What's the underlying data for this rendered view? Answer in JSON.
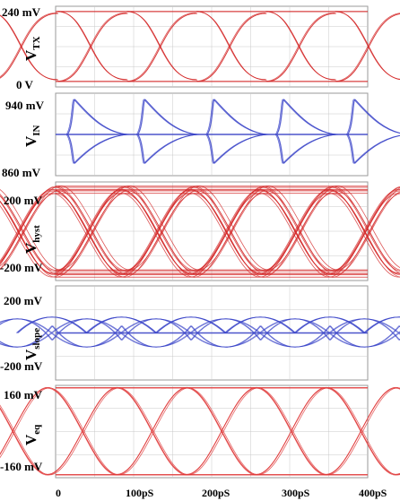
{
  "chart_data": [
    {
      "type": "line",
      "id": "vtx",
      "ylabel": {
        "main": "V",
        "sub": "TX"
      },
      "ticks": [
        {
          "label": "240 mV",
          "value": 240
        },
        {
          "label": "0 V",
          "value": 0
        }
      ],
      "ylim": [
        0,
        240
      ],
      "x_unit": "pS",
      "crossings_ps": [
        48,
        140,
        230,
        318,
        404
      ],
      "color": "#d42b2b",
      "shape": "nrz-rc",
      "eye_closure": 0.02
    },
    {
      "type": "line",
      "id": "vin",
      "ylabel": {
        "main": "V",
        "sub": "IN"
      },
      "ticks": [
        {
          "label": "940 mV",
          "value": 940
        },
        {
          "label": "860 mV",
          "value": 860
        }
      ],
      "ylim": [
        860,
        940
      ],
      "x_unit": "pS",
      "crossings_ps": [
        24,
        114,
        203,
        292,
        383
      ],
      "color": "#3a44c8",
      "shape": "spike",
      "spike_peak": 934,
      "spike_trough": 872,
      "baseline": 900
    },
    {
      "type": "line",
      "id": "vhyst",
      "ylabel": {
        "main": "V",
        "sub": "hyst"
      },
      "ticks": [
        {
          "label": "200 mV",
          "value": 200
        },
        {
          "label": "-200 mV",
          "value": -200
        }
      ],
      "ylim": [
        -200,
        200
      ],
      "x_unit": "pS",
      "crossings_ps": [
        45,
        133,
        222,
        312,
        400
      ],
      "color": "#d42b2b",
      "shape": "eye-jitter",
      "high": 170,
      "low": -170,
      "spread": 0.08
    },
    {
      "type": "line",
      "id": "vslope",
      "ylabel": {
        "main": "V",
        "sub": "slope"
      },
      "ticks": [
        {
          "label": "200 mV",
          "value": 200
        },
        {
          "label": "-200 mV",
          "value": -200
        }
      ],
      "ylim": [
        -200,
        200
      ],
      "x_unit": "pS",
      "crossings_ps": [
        40,
        128,
        218,
        307,
        396
      ],
      "color": "#3a44c8",
      "shape": "lobes",
      "peak": 120,
      "baseline": 0
    },
    {
      "type": "line",
      "id": "veq",
      "ylabel": {
        "main": "V",
        "sub": "eq"
      },
      "ticks": [
        {
          "label": "160 mV",
          "value": 160
        },
        {
          "label": "-160 mV",
          "value": -160
        }
      ],
      "ylim": [
        -160,
        160
      ],
      "x_unit": "pS",
      "crossings_ps": [
        35,
        124,
        215,
        303,
        392
      ],
      "color": "#e03a3a",
      "shape": "nrz-sine",
      "high": 160,
      "low": -160
    }
  ],
  "x_axis": {
    "ticks": [
      {
        "label": "0",
        "value": 0
      },
      {
        "label": "100pS",
        "value": 100
      },
      {
        "label": "200pS",
        "value": 200
      },
      {
        "label": "300pS",
        "value": 300
      },
      {
        "label": "400pS",
        "value": 400
      }
    ],
    "xlim": [
      0,
      400
    ]
  },
  "grid_color": "#c8c8c8"
}
